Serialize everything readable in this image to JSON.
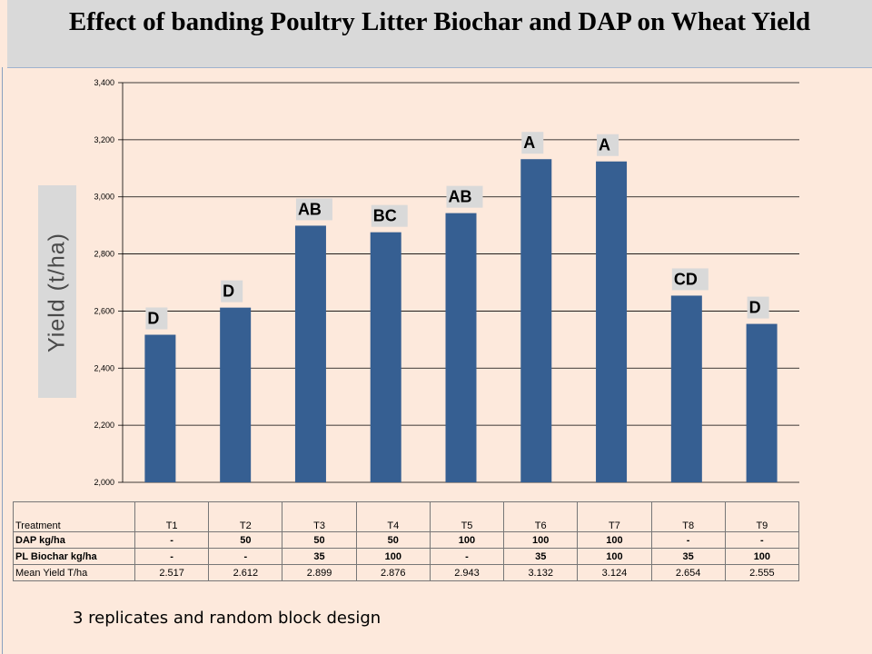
{
  "title": "Effect of banding Poultry Litter Biochar and DAP on Wheat Yield",
  "chart_data": {
    "type": "bar",
    "categories": [
      "T1",
      "T2",
      "T3",
      "T4",
      "T5",
      "T6",
      "T7",
      "T8",
      "T9"
    ],
    "values": [
      2517,
      2612,
      2899,
      2876,
      2943,
      3132,
      3124,
      2654,
      2555
    ],
    "significance_letters": [
      "D",
      "D",
      "AB",
      "BC",
      "AB",
      "A",
      "A",
      "CD",
      "D"
    ],
    "ylabel": "Yield (t/ha)",
    "xlabel": "",
    "ylim": [
      2000,
      3400
    ],
    "yticks": [
      "2,000",
      "2,200",
      "2,400",
      "2,600",
      "2,800",
      "3,000",
      "3,200",
      "3,400"
    ],
    "grid": true,
    "bar_color": "#365f92",
    "letter_bg_color": "#d9d9d9"
  },
  "table": {
    "header": [
      "Treatment",
      "T1",
      "T2",
      "T3",
      "T4",
      "T5",
      "T6",
      "T7",
      "T8",
      "T9"
    ],
    "rows": [
      [
        "DAP kg/ha",
        "-",
        "50",
        "50",
        "50",
        "100",
        "100",
        "100",
        "-",
        "-"
      ],
      [
        "PL Biochar kg/ha",
        "-",
        "-",
        "35",
        "100",
        "-",
        "35",
        "100",
        "35",
        "100"
      ],
      [
        "Mean Yield T/ha",
        "2.517",
        "2.612",
        "2.899",
        "2.876",
        "2.943",
        "3.132",
        "3.124",
        "2.654",
        "2.555"
      ]
    ]
  },
  "note": "3 replicates and random block design"
}
